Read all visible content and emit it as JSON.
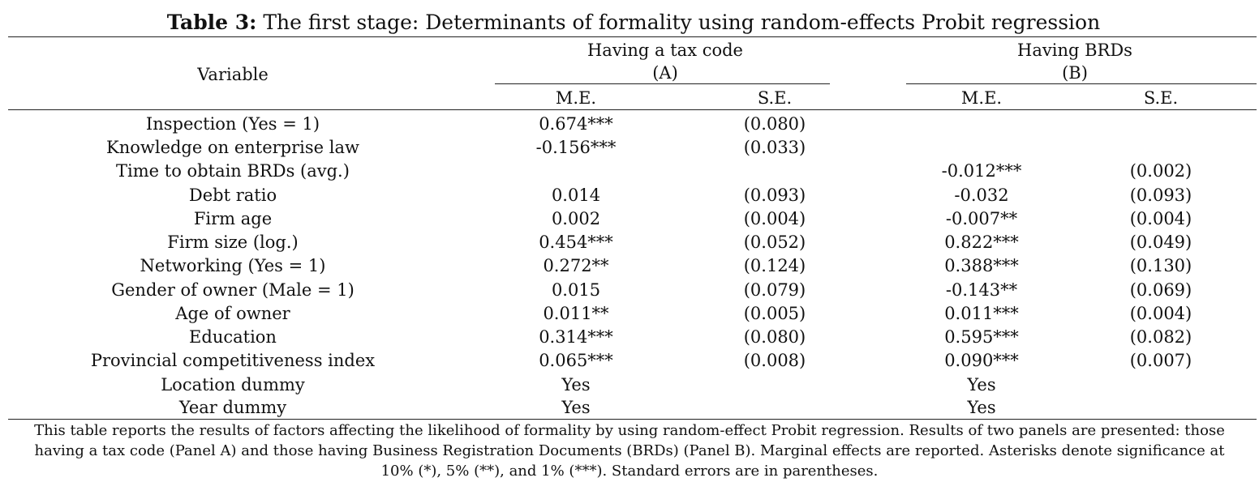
{
  "table": {
    "title_number": "Table 3:",
    "title_text": " The first stage: Determinants of formality using random-effects Probit regression",
    "variable_header": "Variable",
    "panels": [
      {
        "name": "Having a tax code",
        "label": "(A)"
      },
      {
        "name": "Having BRDs",
        "label": "(B)"
      }
    ],
    "subheaders": [
      "M.E.",
      "S.E.",
      "M.E.",
      "S.E."
    ],
    "rows": [
      {
        "variable": "Inspection (Yes = 1)",
        "me_a": "0.674***",
        "se_a": "(0.080)",
        "me_b": "",
        "se_b": ""
      },
      {
        "variable": "Knowledge on enterprise law",
        "me_a": "-0.156***",
        "se_a": "(0.033)",
        "me_b": "",
        "se_b": ""
      },
      {
        "variable": "Time to obtain BRDs (avg.)",
        "me_a": "",
        "se_a": "",
        "me_b": "-0.012***",
        "se_b": "(0.002)"
      },
      {
        "variable": "Debt ratio",
        "me_a": "0.014",
        "se_a": "(0.093)",
        "me_b": "-0.032",
        "se_b": "(0.093)"
      },
      {
        "variable": "Firm age",
        "me_a": "0.002",
        "se_a": "(0.004)",
        "me_b": "-0.007**",
        "se_b": "(0.004)"
      },
      {
        "variable": "Firm size (log.)",
        "me_a": "0.454***",
        "se_a": "(0.052)",
        "me_b": "0.822***",
        "se_b": "(0.049)"
      },
      {
        "variable": "Networking (Yes = 1)",
        "me_a": "0.272**",
        "se_a": "(0.124)",
        "me_b": "0.388***",
        "se_b": "(0.130)"
      },
      {
        "variable": "Gender of owner (Male = 1)",
        "me_a": "0.015",
        "se_a": "(0.079)",
        "me_b": "-0.143**",
        "se_b": "(0.069)"
      },
      {
        "variable": "Age of owner",
        "me_a": "0.011**",
        "se_a": "(0.005)",
        "me_b": "0.011***",
        "se_b": "(0.004)"
      },
      {
        "variable": "Education",
        "me_a": "0.314***",
        "se_a": "(0.080)",
        "me_b": "0.595***",
        "se_b": "(0.082)"
      },
      {
        "variable": "Provincial competitiveness index",
        "me_a": "0.065***",
        "se_a": "(0.008)",
        "me_b": "0.090***",
        "se_b": "(0.007)"
      },
      {
        "variable": "Location dummy",
        "me_a": "Yes",
        "se_a": "",
        "me_b": "Yes",
        "se_b": ""
      },
      {
        "variable": "Year dummy",
        "me_a": "Yes",
        "se_a": "",
        "me_b": "Yes",
        "se_b": ""
      }
    ],
    "note": "This table reports the results of factors affecting the likelihood of formality by using random-effect Probit regression. Results of two panels are presented: those having a tax code (Panel A) and those having Business Registration Documents (BRDs) (Panel B). Marginal effects are reported. Asterisks denote significance at 10% (*), 5% (**), and 1% (***). Standard errors are in parentheses."
  }
}
